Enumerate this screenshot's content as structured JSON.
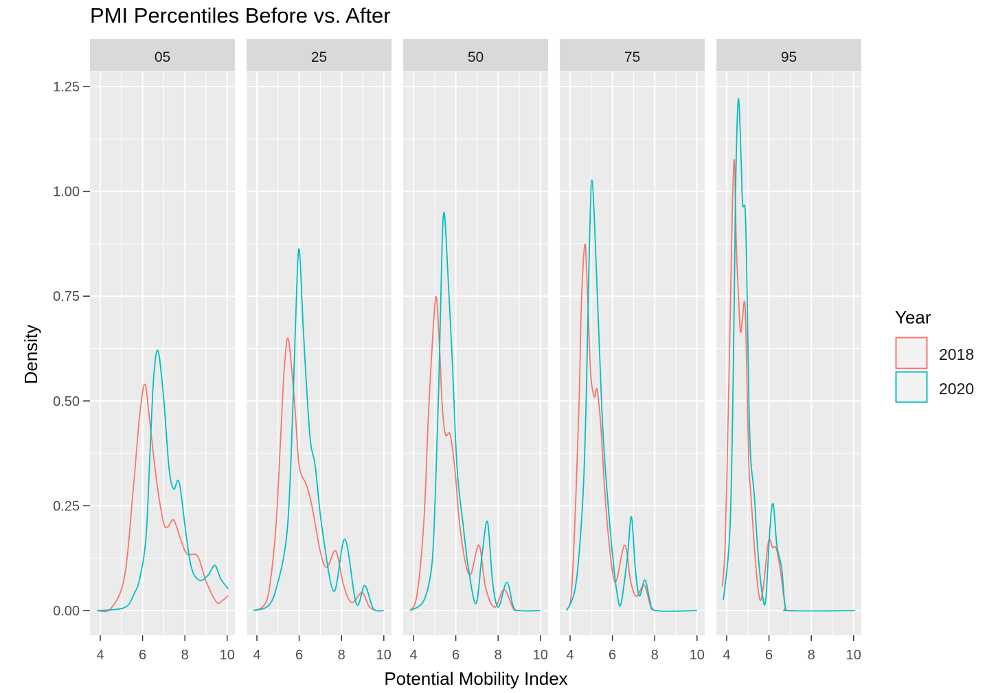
{
  "chart_data": {
    "type": "line",
    "title": "PMI Percentiles Before vs. After",
    "xlabel": "Potential Mobility Index",
    "ylabel": "Density",
    "ylim": [
      0,
      1.3
    ],
    "y_ticks": [
      "0.00",
      "0.25",
      "0.50",
      "0.75",
      "1.00",
      "1.25"
    ],
    "y_tick_values": [
      0,
      0.25,
      0.5,
      0.75,
      1.0,
      1.25
    ],
    "x_ticks": [
      "4",
      "6",
      "8",
      "10"
    ],
    "x_tick_values": [
      4,
      6,
      8,
      10
    ],
    "grid": true,
    "legend": {
      "title": "Year",
      "position": "right",
      "entries": [
        {
          "name": "2018",
          "color": "#F8766D"
        },
        {
          "name": "2020",
          "color": "#00BFC4"
        }
      ]
    },
    "facets": [
      {
        "label": "05",
        "series": [
          {
            "name": "2018",
            "points": [
              [
                3.84,
                0
              ],
              [
                4.5,
                0.005
              ],
              [
                5.14,
                0.08
              ],
              [
                5.56,
                0.29
              ],
              [
                5.85,
                0.46
              ],
              [
                6.11,
                0.54
              ],
              [
                6.34,
                0.45
              ],
              [
                6.66,
                0.31
              ],
              [
                6.99,
                0.21
              ],
              [
                7.2,
                0.2
              ],
              [
                7.47,
                0.216
              ],
              [
                7.8,
                0.17
              ],
              [
                8.1,
                0.135
              ],
              [
                8.6,
                0.13
              ],
              [
                9.0,
                0.07
              ],
              [
                9.5,
                0.02
              ],
              [
                9.8,
                0.025
              ],
              [
                10.05,
                0.036
              ]
            ]
          },
          {
            "name": "2020",
            "points": [
              [
                3.84,
                0
              ],
              [
                5.14,
                0.007
              ],
              [
                5.6,
                0.04
              ],
              [
                5.88,
                0.08
              ],
              [
                6.17,
                0.18
              ],
              [
                6.37,
                0.4
              ],
              [
                6.53,
                0.56
              ],
              [
                6.73,
                0.62
              ],
              [
                6.99,
                0.51
              ],
              [
                7.25,
                0.34
              ],
              [
                7.47,
                0.29
              ],
              [
                7.73,
                0.306
              ],
              [
                8.06,
                0.18
              ],
              [
                8.32,
                0.1
              ],
              [
                8.7,
                0.072
              ],
              [
                9.1,
                0.085
              ],
              [
                9.42,
                0.108
              ],
              [
                9.7,
                0.075
              ],
              [
                10.05,
                0.052
              ]
            ]
          }
        ]
      },
      {
        "label": "25",
        "series": [
          {
            "name": "2018",
            "points": [
              [
                3.84,
                0
              ],
              [
                4.3,
                0.01
              ],
              [
                4.58,
                0.05
              ],
              [
                4.9,
                0.2
              ],
              [
                5.14,
                0.43
              ],
              [
                5.3,
                0.58
              ],
              [
                5.49,
                0.647
              ],
              [
                5.79,
                0.49
              ],
              [
                6.0,
                0.345
              ],
              [
                6.34,
                0.3
              ],
              [
                6.6,
                0.25
              ],
              [
                7.0,
                0.14
              ],
              [
                7.31,
                0.103
              ],
              [
                7.73,
                0.142
              ],
              [
                8.1,
                0.06
              ],
              [
                8.48,
                0.019
              ],
              [
                8.97,
                0.043
              ],
              [
                9.3,
                0.01
              ],
              [
                9.6,
                0
              ]
            ]
          },
          {
            "name": "2020",
            "points": [
              [
                3.84,
                0
              ],
              [
                4.5,
                0.01
              ],
              [
                4.9,
                0.05
              ],
              [
                5.39,
                0.17
              ],
              [
                5.62,
                0.37
              ],
              [
                5.85,
                0.72
              ],
              [
                6.0,
                0.862
              ],
              [
                6.2,
                0.665
              ],
              [
                6.5,
                0.42
              ],
              [
                6.76,
                0.344
              ],
              [
                7.08,
                0.197
              ],
              [
                7.64,
                0.046
              ],
              [
                8.16,
                0.17
              ],
              [
                8.7,
                0.016
              ],
              [
                9.1,
                0.06
              ],
              [
                9.5,
                0.005
              ],
              [
                10,
                0
              ]
            ]
          }
        ]
      },
      {
        "label": "50",
        "series": [
          {
            "name": "2018",
            "points": [
              [
                3.84,
                0
              ],
              [
                4.16,
                0.036
              ],
              [
                4.49,
                0.212
              ],
              [
                4.7,
                0.46
              ],
              [
                4.87,
                0.62
              ],
              [
                5.06,
                0.749
              ],
              [
                5.22,
                0.64
              ],
              [
                5.35,
                0.495
              ],
              [
                5.51,
                0.42
              ],
              [
                5.73,
                0.42
              ],
              [
                5.95,
                0.34
              ],
              [
                6.17,
                0.212
              ],
              [
                6.44,
                0.118
              ],
              [
                6.71,
                0.087
              ],
              [
                7.1,
                0.156
              ],
              [
                7.41,
                0.055
              ],
              [
                7.84,
                0.008
              ],
              [
                8.28,
                0.05
              ],
              [
                8.71,
                0.005
              ],
              [
                8.9,
                0
              ]
            ]
          },
          {
            "name": "2020",
            "points": [
              [
                3.84,
                0
              ],
              [
                4.49,
                0.024
              ],
              [
                4.87,
                0.11
              ],
              [
                5.03,
                0.275
              ],
              [
                5.19,
                0.526
              ],
              [
                5.35,
                0.87
              ],
              [
                5.46,
                0.947
              ],
              [
                5.62,
                0.81
              ],
              [
                5.84,
                0.589
              ],
              [
                6.06,
                0.34
              ],
              [
                6.33,
                0.212
              ],
              [
                6.6,
                0.1
              ],
              [
                6.96,
                0.017
              ],
              [
                7.25,
                0.137
              ],
              [
                7.5,
                0.212
              ],
              [
                7.74,
                0.068
              ],
              [
                8.01,
                0.008
              ],
              [
                8.41,
                0.068
              ],
              [
                8.71,
                0.011
              ],
              [
                8.98,
                0
              ],
              [
                10,
                0
              ]
            ]
          }
        ]
      },
      {
        "label": "75",
        "series": [
          {
            "name": "2018",
            "points": [
              [
                3.84,
                0.003
              ],
              [
                4.06,
                0.04
              ],
              [
                4.27,
                0.265
              ],
              [
                4.43,
                0.5
              ],
              [
                4.54,
                0.74
              ],
              [
                4.7,
                0.874
              ],
              [
                4.81,
                0.775
              ],
              [
                4.97,
                0.57
              ],
              [
                5.14,
                0.51
              ],
              [
                5.28,
                0.527
              ],
              [
                5.46,
                0.435
              ],
              [
                5.62,
                0.3
              ],
              [
                5.84,
                0.163
              ],
              [
                6.14,
                0.068
              ],
              [
                6.58,
                0.156
              ],
              [
                6.87,
                0.068
              ],
              [
                7.14,
                0.034
              ],
              [
                7.5,
                0.061
              ],
              [
                7.79,
                0.013
              ],
              [
                8.0,
                0
              ]
            ]
          },
          {
            "name": "2020",
            "points": [
              [
                3.84,
                0
              ],
              [
                4.27,
                0.061
              ],
              [
                4.6,
                0.265
              ],
              [
                4.76,
                0.5
              ],
              [
                4.87,
                0.775
              ],
              [
                4.95,
                0.945
              ],
              [
                5.03,
                1.027
              ],
              [
                5.14,
                0.945
              ],
              [
                5.3,
                0.741
              ],
              [
                5.51,
                0.47
              ],
              [
                5.68,
                0.33
              ],
              [
                5.95,
                0.163
              ],
              [
                6.22,
                0.041
              ],
              [
                6.41,
                0.017
              ],
              [
                6.71,
                0.129
              ],
              [
                6.9,
                0.224
              ],
              [
                7.09,
                0.095
              ],
              [
                7.28,
                0.035
              ],
              [
                7.54,
                0.073
              ],
              [
                7.79,
                0.021
              ],
              [
                8.06,
                0
              ],
              [
                10,
                0
              ]
            ]
          }
        ]
      },
      {
        "label": "95",
        "series": [
          {
            "name": "2018",
            "points": [
              [
                3.8,
                0.057
              ],
              [
                3.93,
                0.157
              ],
              [
                4.06,
                0.44
              ],
              [
                4.16,
                0.68
              ],
              [
                4.26,
                0.94
              ],
              [
                4.36,
                1.075
              ],
              [
                4.45,
                0.88
              ],
              [
                4.55,
                0.76
              ],
              [
                4.65,
                0.665
              ],
              [
                4.75,
                0.7
              ],
              [
                4.84,
                0.737
              ],
              [
                4.91,
                0.665
              ],
              [
                5.04,
                0.36
              ],
              [
                5.14,
                0.28
              ],
              [
                5.36,
                0.117
              ],
              [
                5.56,
                0.028
              ],
              [
                5.72,
                0.052
              ],
              [
                5.98,
                0.166
              ],
              [
                6.17,
                0.15
              ],
              [
                6.33,
                0.15
              ],
              [
                6.53,
                0.1
              ],
              [
                6.76,
                0.012
              ],
              [
                6.9,
                0
              ],
              [
                7.2,
                0
              ]
            ]
          },
          {
            "name": "2020",
            "points": [
              [
                3.84,
                0.025
              ],
              [
                4.16,
                0.2
              ],
              [
                4.32,
                0.6
              ],
              [
                4.42,
                1.0
              ],
              [
                4.55,
                1.22
              ],
              [
                4.68,
                1.08
              ],
              [
                4.75,
                0.97
              ],
              [
                4.88,
                0.95
              ],
              [
                4.97,
                0.745
              ],
              [
                5.04,
                0.52
              ],
              [
                5.14,
                0.36
              ],
              [
                5.3,
                0.28
              ],
              [
                5.46,
                0.15
              ],
              [
                5.69,
                0.036
              ],
              [
                5.85,
                0.028
              ],
              [
                6.05,
                0.2
              ],
              [
                6.2,
                0.254
              ],
              [
                6.37,
                0.157
              ],
              [
                6.6,
                0.1
              ],
              [
                6.76,
                0.012
              ],
              [
                7.0,
                0
              ],
              [
                10.08,
                0
              ]
            ]
          }
        ]
      }
    ]
  }
}
